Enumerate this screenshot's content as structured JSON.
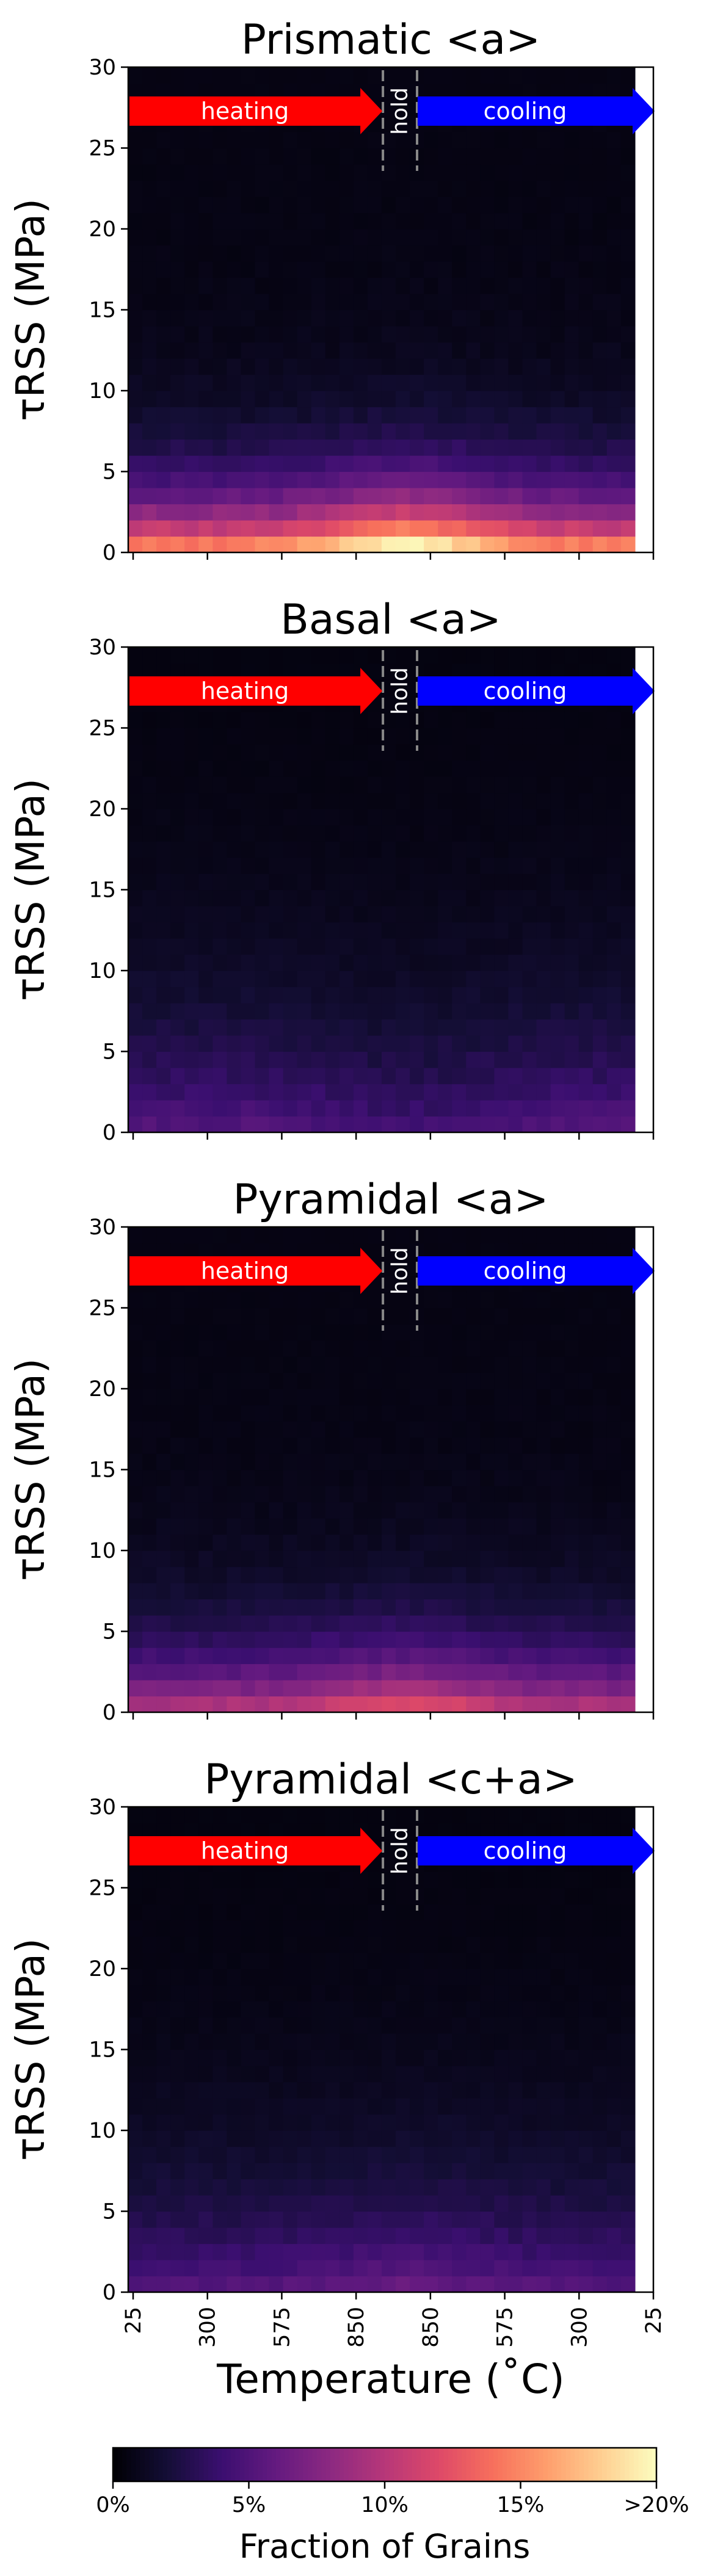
{
  "chart_data": [
    {
      "type": "heatmap",
      "title": "Prismatic <a>",
      "ylabel": "τRSS (MPa)",
      "ylim": [
        0,
        30
      ],
      "yticks": [
        "0",
        "5",
        "10",
        "15",
        "20",
        "25",
        "30"
      ],
      "profile": {
        "base": 0.02,
        "decay": 3.2,
        "amp": 0.16,
        "mid_boost": 0.06,
        "noise": 0.012,
        "seed": 11
      }
    },
    {
      "type": "heatmap",
      "title": "Basal <a>",
      "ylabel": "τRSS (MPa)",
      "ylim": [
        0,
        30
      ],
      "yticks": [
        "0",
        "5",
        "10",
        "15",
        "20",
        "25",
        "30"
      ],
      "profile": {
        "base": 0.015,
        "decay": 6.5,
        "amp": 0.05,
        "mid_boost": -0.01,
        "noise": 0.01,
        "seed": 23
      }
    },
    {
      "type": "heatmap",
      "title": "Pyramidal <a>",
      "ylabel": "τRSS (MPa)",
      "ylim": [
        0,
        30
      ],
      "yticks": [
        "0",
        "5",
        "10",
        "15",
        "20",
        "25",
        "30"
      ],
      "profile": {
        "base": 0.02,
        "decay": 3.5,
        "amp": 0.1,
        "mid_boost": 0.03,
        "noise": 0.01,
        "seed": 37
      }
    },
    {
      "type": "heatmap",
      "title": "Pyramidal <c+a>",
      "ylabel": "τRSS (MPa)",
      "ylim": [
        0,
        30
      ],
      "yticks": [
        "0",
        "5",
        "10",
        "15",
        "20",
        "25",
        "30"
      ],
      "profile": {
        "base": 0.015,
        "decay": 6.0,
        "amp": 0.05,
        "mid_boost": 0.01,
        "noise": 0.009,
        "seed": 53
      }
    }
  ],
  "shared": {
    "xlabel": "Temperature (˚C)",
    "xticks": [
      "25",
      "300",
      "575",
      "850",
      "850",
      "575",
      "300",
      "25"
    ],
    "annotations": {
      "heating": "heating",
      "hold": "hold",
      "cooling": "cooling"
    },
    "colorbar": {
      "label": "Fraction of Grains",
      "ticks": [
        "0%",
        "5%",
        "10%",
        "15%",
        ">20%"
      ],
      "range": [
        0,
        0.2
      ],
      "colormap": "magma"
    }
  },
  "colors": {
    "heating_arrow": "#ff0000",
    "cooling_arrow": "#0000ff",
    "hold_lines": "#888888"
  }
}
